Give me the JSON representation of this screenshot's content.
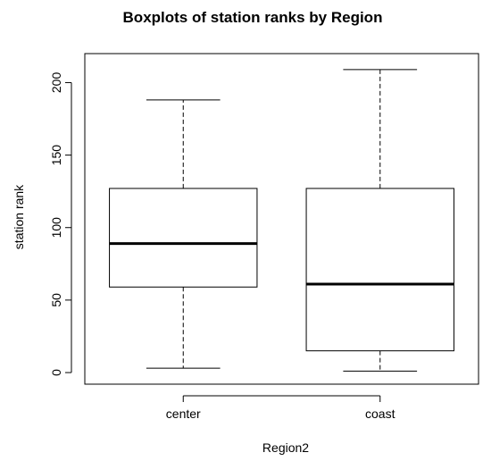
{
  "chart_data": {
    "type": "boxplot",
    "title": "Boxplots of station ranks by Region",
    "xlabel": "Region2",
    "ylabel": "station rank",
    "categories": [
      "center",
      "coast"
    ],
    "boxes": [
      {
        "category": "center",
        "whisker_low": 3,
        "q1": 59,
        "median": 89,
        "q3": 127,
        "whisker_high": 188
      },
      {
        "category": "coast",
        "whisker_low": 1,
        "q1": 15,
        "median": 61,
        "q3": 127,
        "whisker_high": 209
      }
    ],
    "ylim": [
      -8,
      220
    ],
    "yticks": [
      0,
      50,
      100,
      150,
      200
    ],
    "grid": false,
    "legend": "none"
  }
}
